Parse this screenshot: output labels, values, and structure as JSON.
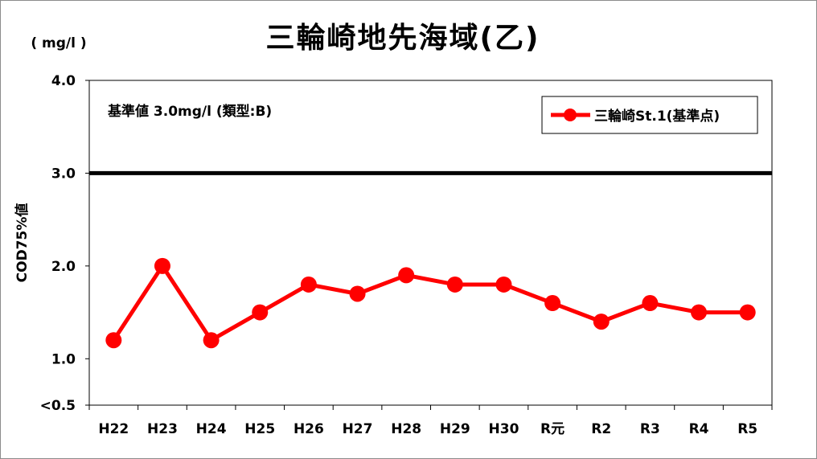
{
  "chart_data": {
    "type": "line",
    "title": "三輪崎地先海域(乙)",
    "unit": "( mg/l )",
    "ylabel": "COD75%値",
    "annotation": "基準値  3.0mg/l (類型:B)",
    "categories": [
      "H22",
      "H23",
      "H24",
      "H25",
      "H26",
      "H27",
      "H28",
      "H29",
      "H30",
      "R元",
      "R2",
      "R3",
      "R4",
      "R5"
    ],
    "series": [
      {
        "name": "三輪崎St.1(基準点)",
        "color": "#ff0000",
        "values": [
          1.2,
          2.0,
          1.2,
          1.5,
          1.8,
          1.7,
          1.9,
          1.8,
          1.8,
          1.6,
          1.4,
          1.6,
          1.5,
          1.5
        ]
      }
    ],
    "ylim": [
      0.5,
      4.0
    ],
    "yticks": [
      {
        "value": 0.5,
        "label": "<0.5"
      },
      {
        "value": 1.0,
        "label": "1.0"
      },
      {
        "value": 2.0,
        "label": "2.0"
      },
      {
        "value": 3.0,
        "label": "3.0"
      },
      {
        "value": 4.0,
        "label": "4.0"
      }
    ],
    "standard_line": {
      "value": 3.0,
      "color": "#000000"
    },
    "grid": false,
    "legend_position": "top-right"
  }
}
